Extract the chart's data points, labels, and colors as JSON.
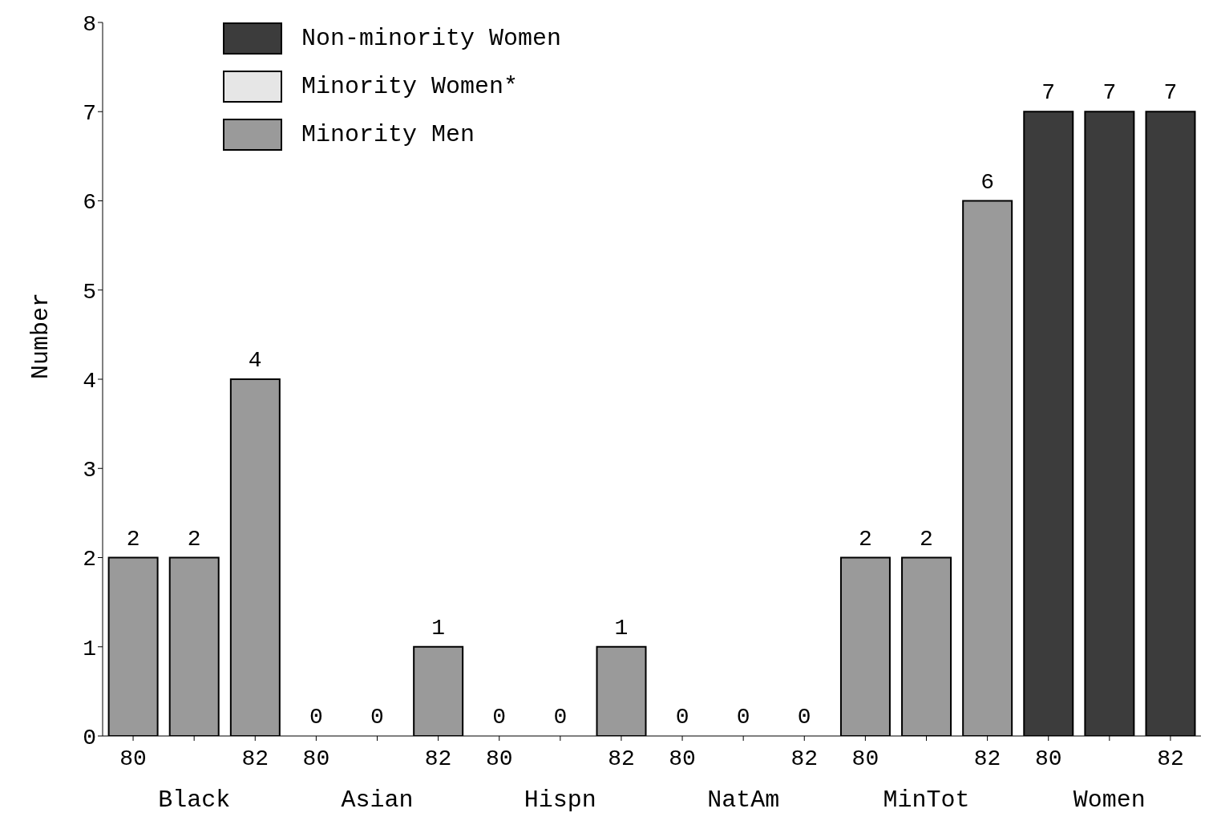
{
  "chart_data": {
    "type": "bar",
    "ylabel": "Number",
    "stacked": true,
    "categories": [
      "80",
      null,
      "82",
      "80",
      null,
      "82",
      "80",
      null,
      "82",
      "80",
      null,
      "82",
      "80",
      null,
      "82",
      "80",
      null,
      "82"
    ],
    "series": [
      {
        "name": "Minority Men",
        "color": "#9a9a9a",
        "values": [
          2,
          2,
          4,
          0,
          0,
          1,
          0,
          0,
          1,
          0,
          0,
          0,
          2,
          2,
          6,
          0,
          0,
          0
        ]
      },
      {
        "name": "Minority Women*",
        "color": "#e6e6e6",
        "values": [
          0,
          0,
          0,
          0,
          0,
          0,
          0,
          0,
          0,
          0,
          0,
          0,
          0,
          0,
          0,
          0,
          0,
          0
        ]
      },
      {
        "name": "Non-minority Women",
        "color": "#3c3c3c",
        "values": [
          0,
          0,
          0,
          0,
          0,
          0,
          0,
          0,
          0,
          0,
          0,
          0,
          0,
          0,
          0,
          7,
          7,
          7
        ]
      }
    ],
    "totals": [
      "2",
      "2",
      "4",
      "0",
      "0",
      "1",
      "0",
      "0",
      "1",
      "0",
      "0",
      "0",
      "2",
      "2",
      "6",
      "7",
      "7",
      "7"
    ],
    "annotations": [
      "Black",
      "Asian",
      "Hispn",
      "NatAm",
      "MinTot",
      "Women"
    ],
    "ylim": [
      0,
      8
    ],
    "yticks": [
      0,
      1,
      2,
      3,
      4,
      5,
      6,
      7,
      8
    ],
    "grid": false,
    "legend": "top left"
  }
}
